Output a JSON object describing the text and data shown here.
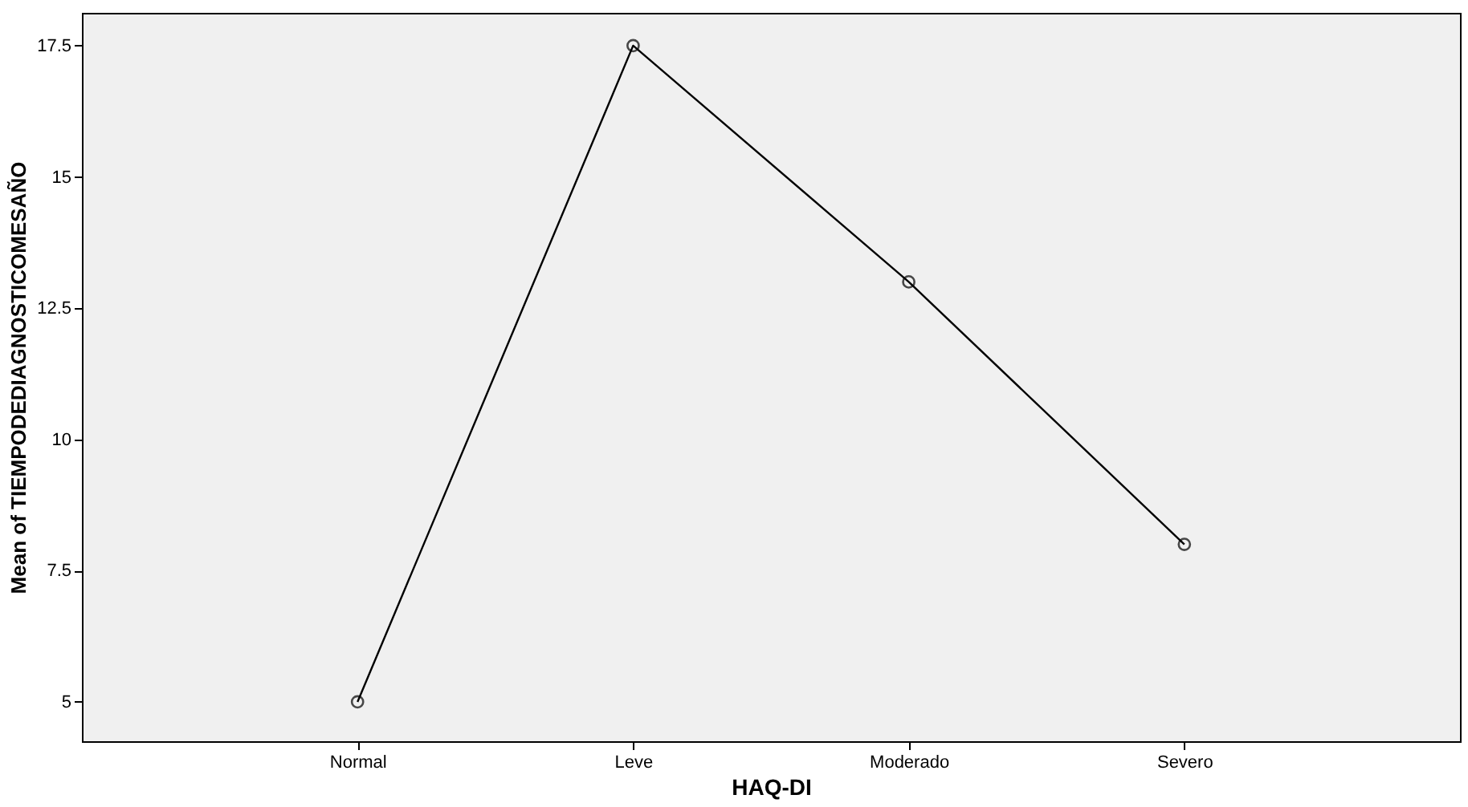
{
  "chart_data": {
    "type": "line",
    "xlabel": "HAQ-DI",
    "ylabel": "Mean of TIEMPODEDIAGNOSTICOMESAÑO",
    "categories": [
      "Normal",
      "Leve",
      "Moderado",
      "Severo"
    ],
    "series": [
      {
        "color": "#000000",
        "values": [
          5,
          17.5,
          13,
          8
        ]
      }
    ],
    "ylim": [
      4.25,
      18.125
    ],
    "yticks": [
      5,
      7.5,
      10,
      12.5,
      15,
      17.5
    ],
    "grid": false,
    "legend": false,
    "marker": "circle",
    "line_style": "solid"
  }
}
